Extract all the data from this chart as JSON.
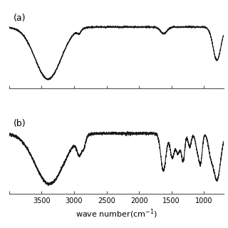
{
  "xlabel_plain": "wave number(cm$^{-1}$)",
  "xmin": 700,
  "xmax": 4000,
  "x_ticks": [
    4000,
    3500,
    3000,
    2500,
    2000,
    1500,
    1000
  ],
  "x_tick_labels": [
    "",
    "3500",
    "3000",
    "2500",
    "2000",
    "1500",
    "1000"
  ],
  "label_a": "(a)",
  "label_b": "(b)",
  "bg_color": "#ffffff",
  "line_color": "#1a1a1a",
  "line_width": 0.8
}
